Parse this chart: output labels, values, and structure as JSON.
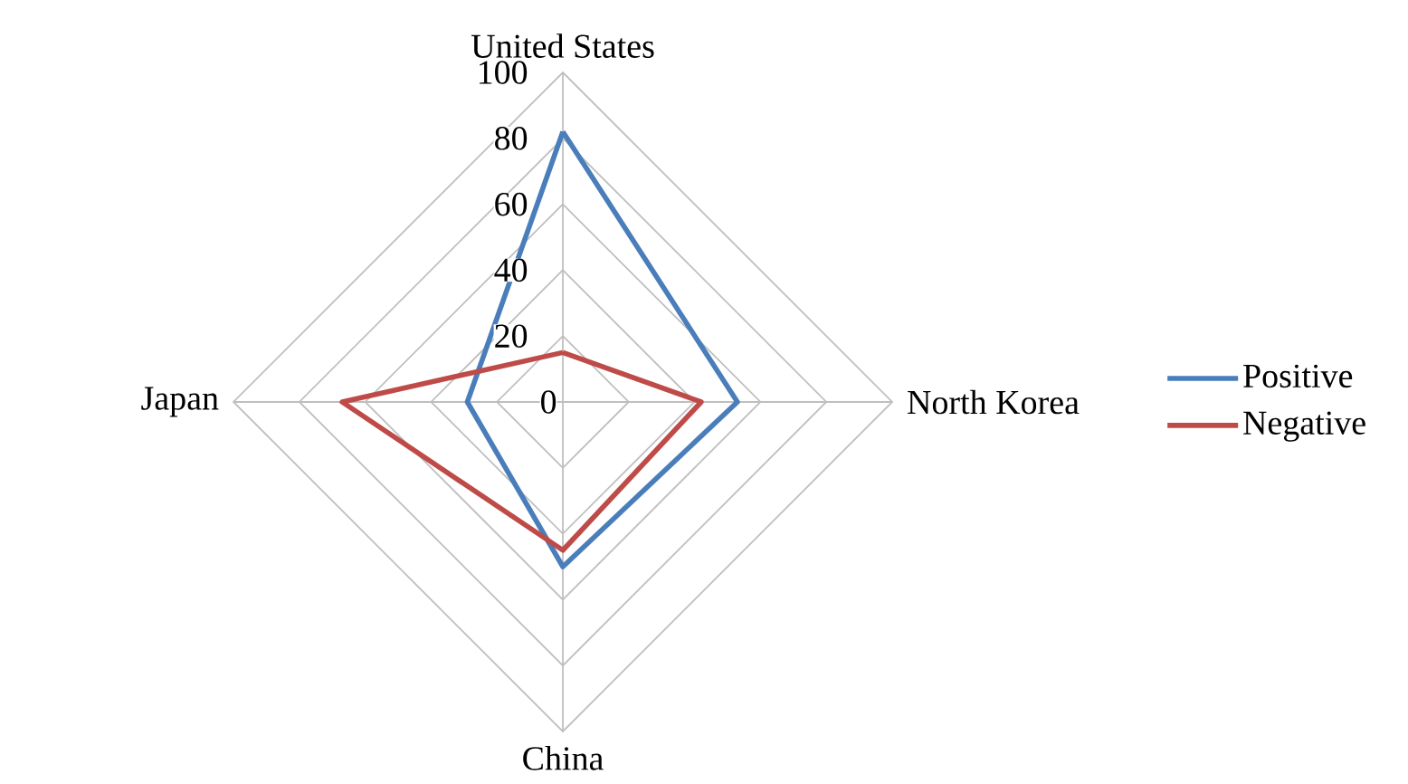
{
  "chart_data": {
    "type": "radar",
    "categories": [
      "United States",
      "North Korea",
      "China",
      "Japan"
    ],
    "series": [
      {
        "name": "Positive",
        "color": "#4a7ebb",
        "values": [
          82,
          53,
          50,
          29
        ]
      },
      {
        "name": "Negative",
        "color": "#be4b48",
        "values": [
          15,
          42,
          45,
          67
        ]
      }
    ],
    "ylim": [
      0,
      100
    ],
    "yticks": [
      0,
      20,
      40,
      60,
      80,
      100
    ],
    "grid": true,
    "legend": "right",
    "line_style": "solid"
  }
}
